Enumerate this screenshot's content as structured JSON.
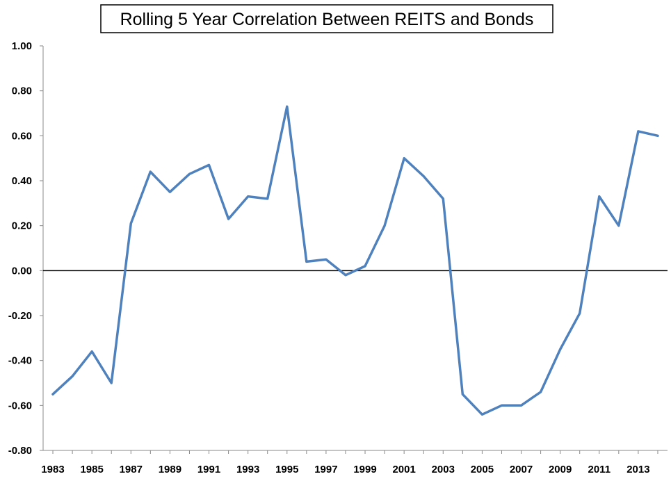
{
  "chart_data": {
    "type": "line",
    "title": "Rolling 5 Year Correlation Between REITS and Bonds",
    "xlabel": "",
    "ylabel": "",
    "x": [
      1983,
      1984,
      1985,
      1986,
      1987,
      1988,
      1989,
      1990,
      1991,
      1992,
      1993,
      1994,
      1995,
      1996,
      1997,
      1998,
      1999,
      2000,
      2001,
      2002,
      2003,
      2004,
      2005,
      2006,
      2007,
      2008,
      2009,
      2010,
      2011,
      2012,
      2013,
      2014
    ],
    "series": [
      {
        "name": "",
        "color": "#4f81bd",
        "values": [
          -0.55,
          -0.47,
          -0.36,
          -0.5,
          0.21,
          0.44,
          0.35,
          0.43,
          0.47,
          0.23,
          0.33,
          0.32,
          0.73,
          0.04,
          0.05,
          -0.02,
          0.02,
          0.2,
          0.5,
          0.42,
          0.32,
          -0.55,
          -0.64,
          -0.6,
          -0.6,
          -0.54,
          -0.35,
          -0.19,
          0.33,
          0.2,
          0.62,
          0.6
        ]
      }
    ],
    "xtick_labels": [
      "1983",
      "1985",
      "1987",
      "1989",
      "1991",
      "1993",
      "1995",
      "1997",
      "1999",
      "2001",
      "2003",
      "2005",
      "2007",
      "2009",
      "2011",
      "2013"
    ],
    "ytick_labels": [
      "1.00",
      "0.80",
      "0.60",
      "0.40",
      "0.20",
      "0.00",
      "-0.20",
      "-0.40",
      "-0.60",
      "-0.80"
    ],
    "ylim": [
      -0.8,
      1.0
    ],
    "xlim": [
      1982.5,
      2014.5
    ],
    "grid": false,
    "legend": "none",
    "zero_line": true,
    "axis_color": "#888888",
    "zero_line_color": "#000000"
  }
}
